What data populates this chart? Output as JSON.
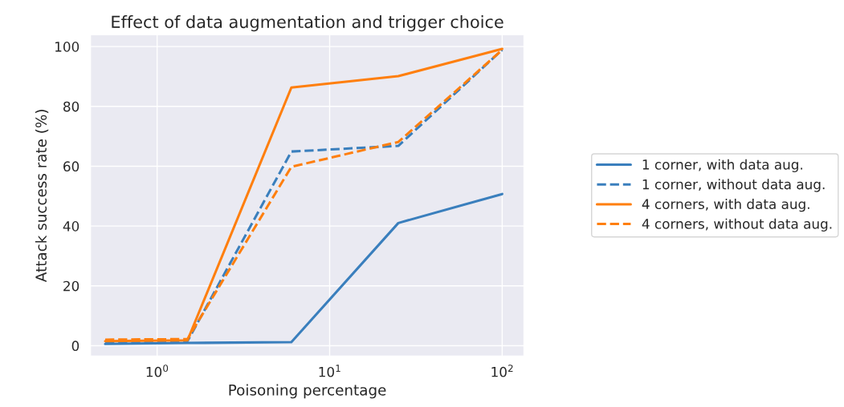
{
  "chart_data": {
    "type": "line",
    "title": "Effect of data augmentation and trigger choice",
    "xlabel": "Poisoning percentage",
    "ylabel": "Attack success rate (%)",
    "x": [
      0.5,
      1.5,
      6,
      25,
      100
    ],
    "series": [
      {
        "name": "1 corner, with data aug.",
        "color": "#3a7fbd",
        "line_style": "solid",
        "values": [
          0.6,
          0.9,
          1.2,
          41.0,
          50.7
        ]
      },
      {
        "name": "1 corner, without data aug.",
        "color": "#3a7fbd",
        "line_style": "dashed",
        "values": [
          1.2,
          1.5,
          64.9,
          66.8,
          98.9
        ]
      },
      {
        "name": "4 corners, with data aug.",
        "color": "#ff7f0e",
        "line_style": "solid",
        "values": [
          1.5,
          1.8,
          86.3,
          90.1,
          99.2
        ]
      },
      {
        "name": "4 corners, without data aug.",
        "color": "#ff7f0e",
        "line_style": "dashed",
        "values": [
          2.0,
          2.2,
          59.8,
          68.1,
          98.9
        ]
      }
    ],
    "log": "x",
    "xlim": [
      0.41,
      134
    ],
    "xticks": [
      {
        "value": 1,
        "label": "10$^{0}$"
      },
      {
        "value": 10,
        "label": "10$^{1}$"
      },
      {
        "value": 100,
        "label": "10$^{2}$"
      }
    ],
    "ylim": [
      -3.5,
      104
    ],
    "yticks": [
      0,
      20,
      40,
      60,
      80,
      100
    ],
    "grid": true,
    "legend": "right"
  }
}
